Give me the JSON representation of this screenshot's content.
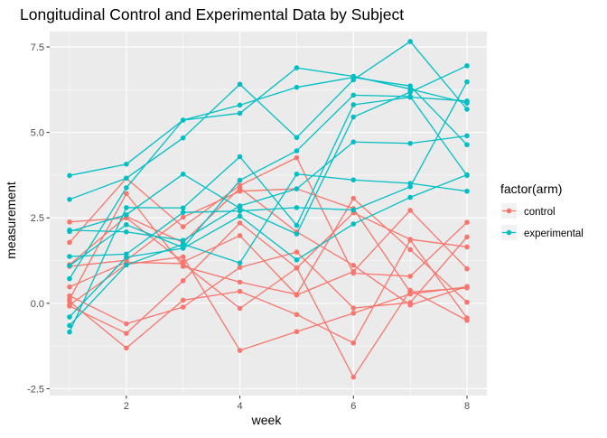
{
  "chart_data": {
    "type": "line",
    "title": "Longitudinal Control and Experimental Data by Subject",
    "xlabel": "week",
    "ylabel": "measurement",
    "xlim": [
      0.65,
      8.35
    ],
    "ylim": [
      -2.7,
      7.95
    ],
    "x_ticks": [
      2,
      4,
      6,
      8
    ],
    "x_minor_ticks": [
      1,
      3,
      5,
      7
    ],
    "y_ticks": [
      -2.5,
      0.0,
      2.5,
      5.0,
      7.5
    ],
    "y_tick_labels": [
      "-2.5",
      "0.0",
      "2.5",
      "5.0",
      "7.5"
    ],
    "y_minor_ticks": [
      -1.25,
      1.25,
      3.75,
      6.25
    ],
    "grid": true,
    "legend": {
      "title": "factor(arm)",
      "position": "right",
      "entries": [
        {
          "label": "control",
          "color": "#F8766D"
        },
        {
          "label": "experimental",
          "color": "#00BFC4"
        }
      ]
    },
    "x": [
      1,
      2,
      3,
      4,
      5,
      6,
      7,
      8
    ],
    "series": [
      {
        "group": "control",
        "values": [
          2.38,
          2.5,
          1.21,
          1.98,
          0.24,
          0.93,
          2.72,
          1.01
        ]
      },
      {
        "group": "control",
        "values": [
          1.78,
          3.66,
          2.24,
          3.45,
          4.26,
          0.88,
          0.79,
          2.37
        ]
      },
      {
        "group": "control",
        "values": [
          1.08,
          1.26,
          2.52,
          3.28,
          3.35,
          2.77,
          0.33,
          0.45
        ]
      },
      {
        "group": "control",
        "values": [
          0.48,
          1.2,
          1.16,
          -0.15,
          1.03,
          2.65,
          1.87,
          1.65
        ]
      },
      {
        "group": "control",
        "values": [
          0.22,
          -0.6,
          -0.11,
          1.05,
          1.5,
          -0.14,
          0.02,
          1.94
        ]
      },
      {
        "group": "control",
        "values": [
          0.12,
          3.21,
          1.08,
          0.62,
          0.26,
          3.07,
          1.57,
          0.03
        ]
      },
      {
        "group": "control",
        "values": [
          0.05,
          -1.31,
          0.09,
          0.35,
          -0.33,
          -1.16,
          1.85,
          -0.43
        ]
      },
      {
        "group": "control",
        "values": [
          -0.05,
          1.14,
          1.36,
          -1.38,
          -0.83,
          -0.29,
          0.27,
          0.48
        ]
      },
      {
        "group": "control",
        "values": [
          -0.08,
          -0.88,
          0.66,
          2.35,
          1.04,
          -2.16,
          0.38,
          -0.5
        ]
      },
      {
        "group": "control",
        "values": [
          1.13,
          2.54,
          1.78,
          3.37,
          2.09,
          1.11,
          -0.05,
          0.49
        ]
      },
      {
        "group": "experimental",
        "values": [
          3.74,
          4.07,
          5.36,
          5.56,
          6.89,
          6.64,
          6.27,
          5.86
        ]
      },
      {
        "group": "experimental",
        "values": [
          3.04,
          3.66,
          4.84,
          6.41,
          4.85,
          6.54,
          7.66,
          5.68
        ]
      },
      {
        "group": "experimental",
        "values": [
          2.1,
          2.59,
          3.78,
          2.78,
          2.03,
          5.45,
          6.18,
          6.95
        ]
      },
      {
        "group": "experimental",
        "values": [
          1.37,
          1.44,
          2.66,
          2.7,
          2.8,
          2.73,
          3.41,
          6.48
        ]
      },
      {
        "group": "experimental",
        "values": [
          -0.84,
          2.8,
          2.79,
          4.29,
          2.28,
          5.81,
          6.03,
          5.92
        ]
      },
      {
        "group": "experimental",
        "values": [
          -0.4,
          1.35,
          1.61,
          2.55,
          1.27,
          2.32,
          3.1,
          3.76
        ]
      },
      {
        "group": "experimental",
        "values": [
          0.72,
          3.38,
          5.36,
          5.8,
          6.32,
          6.61,
          6.36,
          4.64
        ]
      },
      {
        "group": "experimental",
        "values": [
          -0.65,
          1.12,
          1.73,
          1.18,
          3.78,
          3.61,
          3.51,
          3.28
        ]
      },
      {
        "group": "experimental",
        "values": [
          2.14,
          2.09,
          1.84,
          2.85,
          3.35,
          4.72,
          4.68,
          4.9
        ]
      },
      {
        "group": "experimental",
        "values": [
          1.1,
          2.3,
          1.63,
          3.6,
          4.46,
          6.09,
          6.05,
          3.74
        ]
      }
    ]
  }
}
